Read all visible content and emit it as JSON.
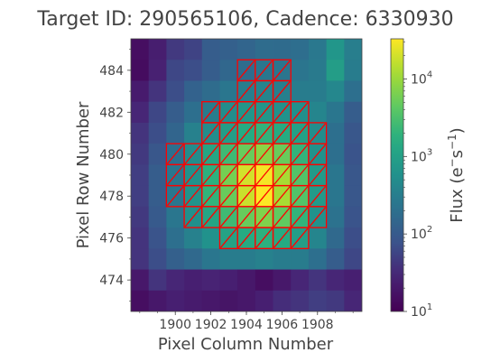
{
  "chart_data": {
    "type": "heatmap",
    "title": "Target ID: 290565106, Cadence: 6330930",
    "xlabel": "Pixel Column Number",
    "ylabel": "Pixel Row Number",
    "colorbar_label_base": "Flux (e",
    "colorbar_label_minus": "−",
    "colorbar_label_s": "s",
    "colorbar_label_exp": "−1",
    "colorbar_label_close": ")",
    "colormap": "viridis",
    "colorbar_scale": "log",
    "colorbar_range": [
      10,
      33000
    ],
    "colorbar_ticks": [
      {
        "value": 10,
        "base": "10",
        "exp": "1"
      },
      {
        "value": 100,
        "base": "10",
        "exp": "2"
      },
      {
        "value": 1000,
        "base": "10",
        "exp": "3"
      },
      {
        "value": 10000,
        "base": "10",
        "exp": "4"
      }
    ],
    "x_ticks": [
      "1900",
      "1902",
      "1904",
      "1906",
      "1908"
    ],
    "x_tick_values": [
      1900,
      1902,
      1904,
      1906,
      1908
    ],
    "y_ticks": [
      "474",
      "476",
      "478",
      "480",
      "482",
      "484"
    ],
    "y_tick_values": [
      474,
      476,
      478,
      480,
      482,
      484
    ],
    "columns": [
      1898,
      1899,
      1900,
      1901,
      1902,
      1903,
      1904,
      1905,
      1906,
      1907,
      1908,
      1909,
      1910
    ],
    "rows": [
      485,
      484,
      483,
      482,
      481,
      480,
      479,
      478,
      477,
      476,
      475,
      474,
      473
    ],
    "flux": [
      [
        15,
        24,
        45,
        55,
        110,
        120,
        140,
        180,
        170,
        190,
        260,
        700,
        320
      ],
      [
        14,
        26,
        60,
        70,
        110,
        150,
        180,
        250,
        240,
        240,
        280,
        900,
        300
      ],
      [
        22,
        40,
        70,
        130,
        180,
        250,
        320,
        380,
        330,
        300,
        300,
        420,
        200
      ],
      [
        30,
        60,
        110,
        200,
        300,
        500,
        700,
        700,
        600,
        550,
        400,
        250,
        110
      ],
      [
        40,
        70,
        140,
        350,
        500,
        900,
        1500,
        2000,
        1500,
        1000,
        500,
        200,
        90
      ],
      [
        45,
        90,
        200,
        500,
        1200,
        2500,
        5000,
        8000,
        5000,
        2000,
        600,
        200,
        80
      ],
      [
        50,
        110,
        250,
        600,
        1800,
        6000,
        20000,
        30000,
        12000,
        3500,
        800,
        250,
        90
      ],
      [
        50,
        110,
        250,
        650,
        2000,
        5000,
        18000,
        33000,
        12000,
        3500,
        800,
        250,
        90
      ],
      [
        45,
        100,
        250,
        550,
        1200,
        2500,
        5000,
        7000,
        4500,
        2000,
        600,
        220,
        80
      ],
      [
        40,
        80,
        200,
        350,
        600,
        1100,
        1500,
        1800,
        1500,
        900,
        400,
        160,
        70
      ],
      [
        40,
        70,
        120,
        160,
        250,
        300,
        300,
        350,
        300,
        300,
        200,
        110,
        60
      ],
      [
        20,
        40,
        30,
        25,
        28,
        25,
        20,
        15,
        20,
        30,
        40,
        30,
        25
      ],
      [
        15,
        20,
        25,
        22,
        20,
        18,
        20,
        25,
        35,
        40,
        50,
        45,
        30
      ]
    ],
    "aperture_mask": [
      [
        0,
        0,
        0,
        0,
        0,
        0,
        0,
        0,
        0,
        0,
        0,
        0,
        0
      ],
      [
        0,
        0,
        0,
        0,
        0,
        0,
        1,
        1,
        1,
        0,
        0,
        0,
        0
      ],
      [
        0,
        0,
        0,
        0,
        0,
        0,
        1,
        1,
        1,
        0,
        0,
        0,
        0
      ],
      [
        0,
        0,
        0,
        0,
        1,
        1,
        1,
        1,
        1,
        1,
        0,
        0,
        0
      ],
      [
        0,
        0,
        0,
        0,
        1,
        1,
        1,
        1,
        1,
        1,
        1,
        0,
        0
      ],
      [
        0,
        0,
        1,
        1,
        1,
        1,
        1,
        1,
        1,
        1,
        1,
        0,
        0
      ],
      [
        0,
        0,
        1,
        1,
        1,
        1,
        1,
        1,
        1,
        1,
        1,
        0,
        0
      ],
      [
        0,
        0,
        1,
        1,
        1,
        1,
        1,
        1,
        1,
        1,
        1,
        0,
        0
      ],
      [
        0,
        0,
        0,
        1,
        1,
        1,
        1,
        1,
        1,
        1,
        1,
        0,
        0
      ],
      [
        0,
        0,
        0,
        0,
        0,
        1,
        1,
        1,
        1,
        1,
        0,
        0,
        0
      ],
      [
        0,
        0,
        0,
        0,
        0,
        0,
        0,
        0,
        0,
        0,
        0,
        0,
        0
      ],
      [
        0,
        0,
        0,
        0,
        0,
        0,
        0,
        0,
        0,
        0,
        0,
        0,
        0
      ],
      [
        0,
        0,
        0,
        0,
        0,
        0,
        0,
        0,
        0,
        0,
        0,
        0,
        0
      ]
    ],
    "aperture_color": "#ff0000",
    "grid": false
  }
}
